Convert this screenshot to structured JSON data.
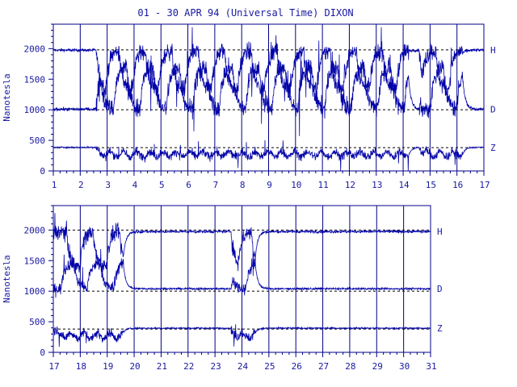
{
  "title": "01 - 30 APR 94 (Universal Time) DIXON",
  "colors": {
    "trace": "#0000a8",
    "axis": "#000088",
    "text": "#1818a0",
    "baseline": "#000000",
    "background": "#ffffff"
  },
  "chart_data": [
    {
      "type": "line",
      "panel": "upper",
      "ylabel": "Nanotesla",
      "xlim": [
        1,
        17
      ],
      "ylim": [
        0,
        2400
      ],
      "x_ticks": [
        "1",
        "2",
        "3",
        "4",
        "5",
        "6",
        "7",
        "8",
        "9",
        "10",
        "11",
        "12",
        "13",
        "14",
        "15",
        "16",
        "17"
      ],
      "y_ticks": [
        "0",
        "500",
        "1000",
        "1500",
        "2000"
      ],
      "grid": "vertical lines at each day",
      "series": [
        {
          "name": "H",
          "baseline": 1980,
          "quiet_level": 1975,
          "disturbed_days": [
            [
              2.6,
              14.2
            ],
            [
              14.6,
              16.2
            ]
          ],
          "activity_range": [
            900,
            2350
          ]
        },
        {
          "name": "D",
          "baseline": 1000,
          "quiet_level": 1010,
          "disturbed_days": [
            [
              2.6,
              14.2
            ],
            [
              14.6,
              16.2
            ]
          ],
          "activity_range": [
            400,
            1950
          ]
        },
        {
          "name": "Z",
          "baseline": 380,
          "quiet_level": 385,
          "disturbed_days": [
            [
              2.6,
              14.2
            ],
            [
              14.6,
              16.2
            ]
          ],
          "activity_range": [
            0,
            700
          ]
        }
      ]
    },
    {
      "type": "line",
      "panel": "lower",
      "ylabel": "Nanotesla",
      "xlim": [
        17,
        31
      ],
      "ylim": [
        0,
        2400
      ],
      "x_ticks": [
        "17",
        "18",
        "19",
        "20",
        "21",
        "22",
        "23",
        "24",
        "25",
        "26",
        "27",
        "28",
        "29",
        "30",
        "31"
      ],
      "y_ticks": [
        "0",
        "500",
        "1000",
        "1500",
        "2000"
      ],
      "grid": "vertical lines at each day",
      "series": [
        {
          "name": "H",
          "baseline": 2000,
          "quiet_level": 1975,
          "disturbed_days": [
            [
              17.0,
              19.6
            ],
            [
              23.6,
              24.5
            ]
          ],
          "activity_range": [
            1000,
            2300
          ]
        },
        {
          "name": "D",
          "baseline": 1000,
          "quiet_level": 1040,
          "disturbed_days": [
            [
              17.0,
              19.6
            ],
            [
              23.6,
              24.5
            ]
          ],
          "activity_range": [
            850,
            1800
          ]
        },
        {
          "name": "Z",
          "baseline": 380,
          "quiet_level": 395,
          "disturbed_days": [
            [
              17.0,
              19.6
            ],
            [
              23.6,
              24.5
            ]
          ],
          "activity_range": [
            0,
            750
          ]
        }
      ]
    }
  ]
}
